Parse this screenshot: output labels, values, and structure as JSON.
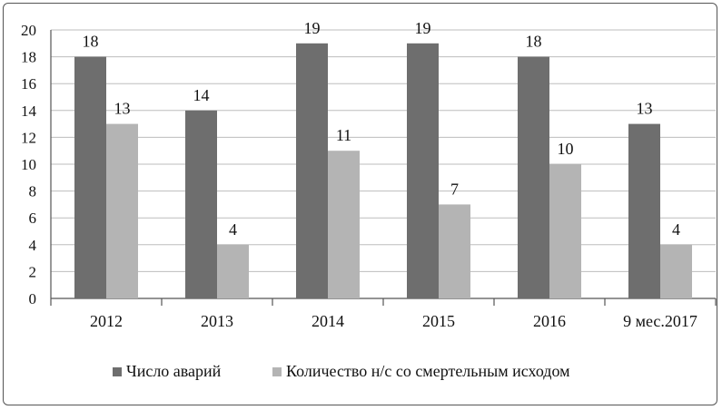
{
  "chart_data": {
    "type": "bar",
    "categories": [
      "2012",
      "2013",
      "2014",
      "2015",
      "2016",
      "9 мес.2017"
    ],
    "series": [
      {
        "name": "Число аварий",
        "values": [
          18,
          14,
          19,
          19,
          18,
          13
        ],
        "color": "#6e6e6e"
      },
      {
        "name": "Количество н/с со смертельным исходом",
        "values": [
          13,
          4,
          11,
          7,
          10,
          4
        ],
        "color": "#b4b4b4"
      }
    ],
    "ylim": [
      0,
      20
    ],
    "yticks": [
      0,
      2,
      4,
      6,
      8,
      10,
      12,
      14,
      16,
      18,
      20
    ],
    "grid": true,
    "data_labels": true,
    "legend_position": "bottom"
  }
}
